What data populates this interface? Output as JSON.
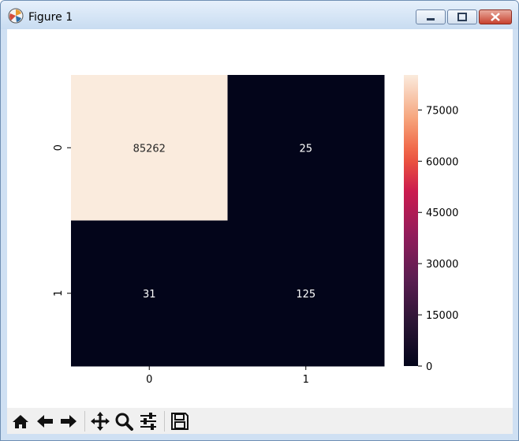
{
  "window": {
    "title": "Figure 1"
  },
  "toolbar": {
    "buttons": [
      {
        "name": "home-icon"
      },
      {
        "name": "back-arrow-icon"
      },
      {
        "name": "forward-arrow-icon"
      },
      {
        "name": "pan-move-icon"
      },
      {
        "name": "zoom-magnifier-icon"
      },
      {
        "name": "configure-subplots-icon"
      },
      {
        "name": "save-floppy-icon"
      }
    ]
  },
  "chart_data": {
    "type": "heatmap",
    "title": "",
    "xlabel": "",
    "ylabel": "",
    "x_tick_labels": [
      "0",
      "1"
    ],
    "y_tick_labels": [
      "0",
      "1"
    ],
    "values": [
      [
        85262,
        25
      ],
      [
        31,
        125
      ]
    ],
    "annotations": [
      [
        "85262",
        "25"
      ],
      [
        "31",
        "125"
      ]
    ],
    "colorbar": {
      "ticks": [
        "0",
        "15000",
        "30000",
        "45000",
        "60000",
        "75000"
      ],
      "min": 0,
      "max": 85262,
      "colormap": "rocket",
      "low_color": "#03051a",
      "high_color": "#faebdd"
    }
  }
}
